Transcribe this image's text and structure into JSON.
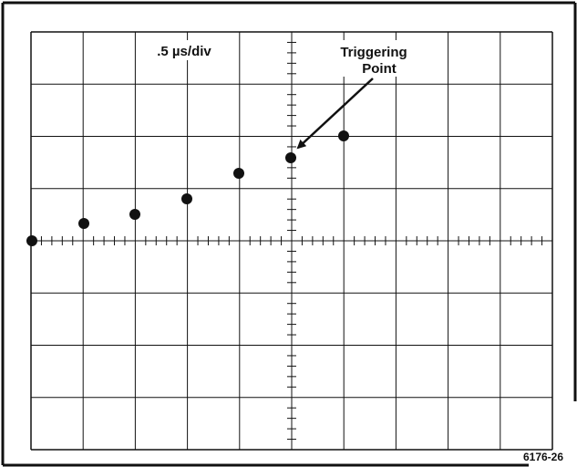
{
  "scale_label": ".5 µs/div",
  "annotation": {
    "lines": [
      "Triggering",
      "Point"
    ]
  },
  "figure_id": "6176-26"
}
